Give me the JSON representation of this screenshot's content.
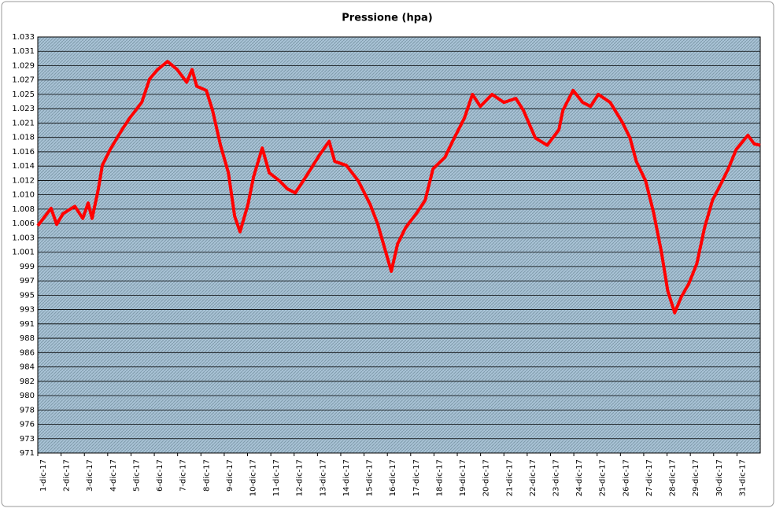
{
  "chart_data": {
    "type": "line",
    "title": "Pressione (hpa)",
    "categories": [
      "1-dic-17",
      "2-dic-17",
      "3-dic-17",
      "4-dic-17",
      "5-dic-17",
      "6-dic-17",
      "7-dic-17",
      "8-dic-17",
      "9-dic-17",
      "10-dic-17",
      "11-dic-17",
      "12-dic-17",
      "13-dic-17",
      "14-dic-17",
      "15-dic-17",
      "16-dic-17",
      "17-dic-17",
      "18-dic-17",
      "19-dic-17",
      "20-dic-17",
      "21-dic-17",
      "22-dic-17",
      "23-dic-17",
      "24-dic-17",
      "25-dic-17",
      "26-dic-17",
      "27-dic-17",
      "28-dic-17",
      "29-dic-17",
      "30-dic-17",
      "31-dic-17"
    ],
    "xlim": [
      0,
      31
    ],
    "series": [
      {
        "color": "#ff0000",
        "x": [
          0,
          0.57,
          0.81,
          1.08,
          1.59,
          1.93,
          2.16,
          2.33,
          2.6,
          2.77,
          3.11,
          3.61,
          3.95,
          4.46,
          4.8,
          5.14,
          5.57,
          5.98,
          6.39,
          6.62,
          6.82,
          7.23,
          7.5,
          7.84,
          8.18,
          8.45,
          8.68,
          9.02,
          9.26,
          9.63,
          9.93,
          10.37,
          10.71,
          11.05,
          11.39,
          11.72,
          12.06,
          12.5,
          12.74,
          13.24,
          13.75,
          14.26,
          14.59,
          14.93,
          15.17,
          15.44,
          15.78,
          16.28,
          16.62,
          16.96,
          17.47,
          17.8,
          18.31,
          18.65,
          18.99,
          19.49,
          20,
          20.51,
          20.84,
          21.35,
          21.86,
          22.36,
          22.53,
          22.97,
          23.38,
          23.72,
          24.05,
          24.56,
          25.07,
          25.41,
          25.68,
          26.08,
          26.42,
          26.76,
          27.03,
          27.33,
          27.6,
          27.94,
          28.28,
          28.61,
          28.95,
          29.29,
          29.63,
          29.97,
          30.47,
          30.74,
          31
        ],
        "values": [
          1005.2,
          1007.8,
          1005.4,
          1007.0,
          1008.1,
          1006.3,
          1008.6,
          1006.3,
          1010.7,
          1014.2,
          1016.6,
          1019.5,
          1021.3,
          1023.6,
          1027.1,
          1028.5,
          1029.7,
          1028.5,
          1026.6,
          1028.5,
          1026.0,
          1025.4,
          1022.4,
          1017.2,
          1013.1,
          1006.6,
          1004.3,
          1008.4,
          1012.5,
          1016.8,
          1013.1,
          1011.9,
          1010.7,
          1010.1,
          1011.9,
          1013.7,
          1015.6,
          1017.8,
          1014.8,
          1014.2,
          1011.9,
          1008.4,
          1005.4,
          1001.3,
          998.4,
          1002.5,
          1004.9,
          1007.2,
          1009.0,
          1013.7,
          1015.4,
          1017.8,
          1021.3,
          1024.8,
          1023.0,
          1024.8,
          1023.6,
          1024.2,
          1022.4,
          1018.3,
          1017.2,
          1019.5,
          1022.4,
          1025.4,
          1023.6,
          1023.0,
          1024.8,
          1023.6,
          1020.7,
          1018.3,
          1014.8,
          1011.9,
          1007.2,
          1001.3,
          995.5,
          992.2,
          994.5,
          996.6,
          999.6,
          1004.9,
          1009.0,
          1011.3,
          1013.7,
          1016.6,
          1018.7,
          1017.4,
          1017.2
        ]
      }
    ],
    "ylim": [
      971.3,
      1033.36
    ],
    "yticks": [
      {
        "value": 971.3,
        "label": "971"
      },
      {
        "value": 973.44,
        "label": "973"
      },
      {
        "value": 975.58,
        "label": "976"
      },
      {
        "value": 977.72,
        "label": "978"
      },
      {
        "value": 979.86,
        "label": "980"
      },
      {
        "value": 982.0,
        "label": "982"
      },
      {
        "value": 984.14,
        "label": "984"
      },
      {
        "value": 986.28,
        "label": "986"
      },
      {
        "value": 988.42,
        "label": "988"
      },
      {
        "value": 990.56,
        "label": "991"
      },
      {
        "value": 992.7,
        "label": "993"
      },
      {
        "value": 994.84,
        "label": "995"
      },
      {
        "value": 996.98,
        "label": "997"
      },
      {
        "value": 999.12,
        "label": "999"
      },
      {
        "value": 1001.26,
        "label": "1.001"
      },
      {
        "value": 1003.4,
        "label": "1.003"
      },
      {
        "value": 1005.54,
        "label": "1.006"
      },
      {
        "value": 1007.68,
        "label": "1.008"
      },
      {
        "value": 1009.82,
        "label": "1.010"
      },
      {
        "value": 1011.96,
        "label": "1.012"
      },
      {
        "value": 1014.1,
        "label": "1.014"
      },
      {
        "value": 1016.24,
        "label": "1.016"
      },
      {
        "value": 1018.38,
        "label": "1.018"
      },
      {
        "value": 1020.52,
        "label": "1.021"
      },
      {
        "value": 1022.66,
        "label": "1.023"
      },
      {
        "value": 1024.8,
        "label": "1.025"
      },
      {
        "value": 1026.94,
        "label": "1.027"
      },
      {
        "value": 1029.08,
        "label": "1.029"
      },
      {
        "value": 1031.22,
        "label": "1.031"
      },
      {
        "value": 1033.36,
        "label": "1.033"
      }
    ],
    "grid": true
  }
}
